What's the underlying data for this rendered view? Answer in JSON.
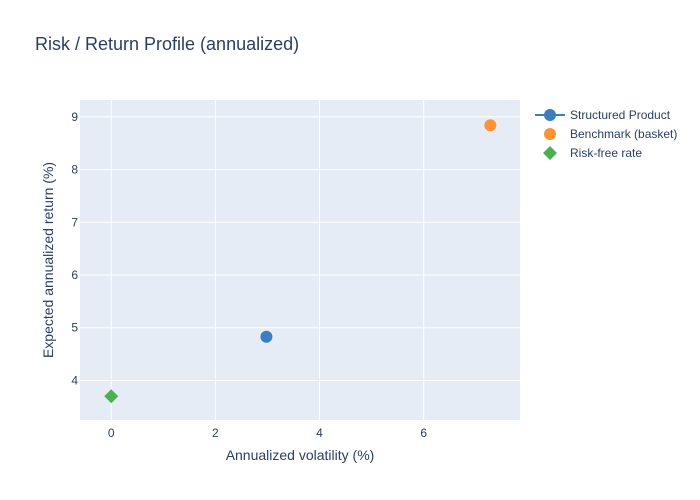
{
  "chart_data": {
    "type": "scatter",
    "title": "Risk / Return Profile (annualized)",
    "xlabel": "Annualized volatility (%)",
    "ylabel": "Expected annualized return (%)",
    "xlim": [
      -0.6,
      7.85
    ],
    "ylim": [
      3.25,
      9.32
    ],
    "xticks": [
      0,
      2,
      4,
      6
    ],
    "yticks": [
      4,
      5,
      6,
      7,
      8,
      9
    ],
    "grid": true,
    "legend_position": "top-right",
    "series": [
      {
        "name": "Structured Product",
        "marker": "circle",
        "color": "#3a7ebf",
        "legend_line": true,
        "points": [
          {
            "x": 2.98,
            "y": 4.83
          }
        ]
      },
      {
        "name": "Benchmark (basket)",
        "marker": "circle",
        "color": "#ff9233",
        "legend_line": false,
        "points": [
          {
            "x": 7.28,
            "y": 8.84
          }
        ]
      },
      {
        "name": "Risk-free rate",
        "marker": "diamond",
        "color": "#4caf50",
        "legend_line": false,
        "points": [
          {
            "x": 0.0,
            "y": 3.7
          }
        ]
      }
    ]
  }
}
